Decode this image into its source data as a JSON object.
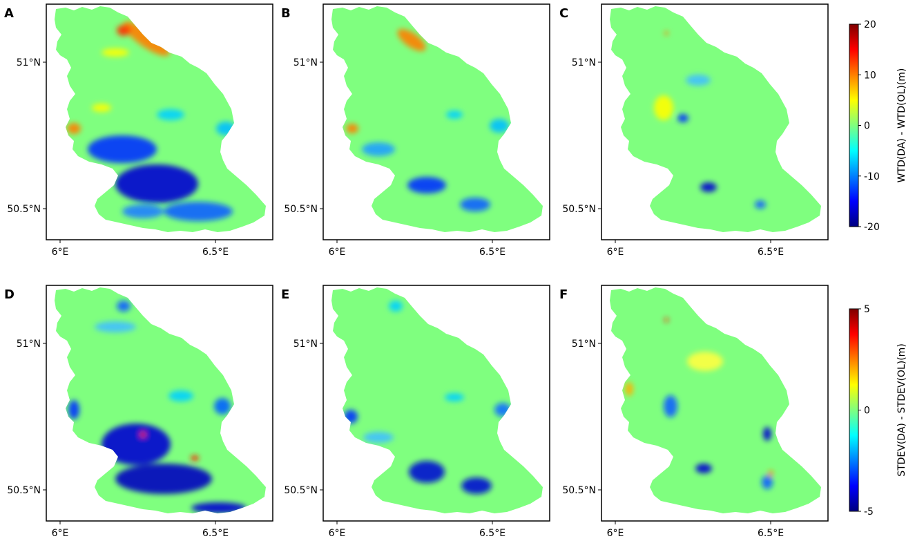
{
  "chart_data": [
    {
      "type": "heatmap",
      "panel": "A",
      "x_ticks": [
        "6°E",
        "6.5°E"
      ],
      "y_ticks": [
        "51°N",
        "50.5°N"
      ],
      "colorbar": "WTD"
    },
    {
      "type": "heatmap",
      "panel": "B",
      "x_ticks": [
        "6°E",
        "6.5°E"
      ],
      "y_ticks": [
        "51°N",
        "50.5°N"
      ],
      "colorbar": "WTD"
    },
    {
      "type": "heatmap",
      "panel": "C",
      "x_ticks": [
        "6°E",
        "6.5°E"
      ],
      "y_ticks": [
        "51°N",
        "50.5°N"
      ],
      "colorbar": "WTD"
    },
    {
      "type": "heatmap",
      "panel": "D",
      "x_ticks": [
        "6°E",
        "6.5°E"
      ],
      "y_ticks": [
        "51°N",
        "50.5°N"
      ],
      "colorbar": "STDEV"
    },
    {
      "type": "heatmap",
      "panel": "E",
      "x_ticks": [
        "6°E",
        "6.5°E"
      ],
      "y_ticks": [
        "51°N",
        "50.5°N"
      ],
      "colorbar": "STDEV"
    },
    {
      "type": "heatmap",
      "panel": "F",
      "x_ticks": [
        "6°E",
        "6.5°E"
      ],
      "y_ticks": [
        "51°N",
        "50.5°N"
      ],
      "colorbar": "STDEV"
    }
  ],
  "colorbars": {
    "WTD": {
      "label": "WTD(DA) - WTD(OL)(m)",
      "ticks": [
        "20",
        "10",
        "0",
        "-10",
        "-20"
      ],
      "range": [
        -20,
        20
      ]
    },
    "STDEV": {
      "label": "STDEV(DA) - STDEV(OL)(m)",
      "ticks": [
        "5",
        "0",
        "-5"
      ],
      "range": [
        -5,
        5
      ]
    }
  },
  "colormap": [
    "#00007f",
    "#0000ff",
    "#007fff",
    "#00ffff",
    "#7fff7f",
    "#ffff00",
    "#ff7f00",
    "#ff0000",
    "#7f0000"
  ],
  "background_value_color": "#7fff7f"
}
